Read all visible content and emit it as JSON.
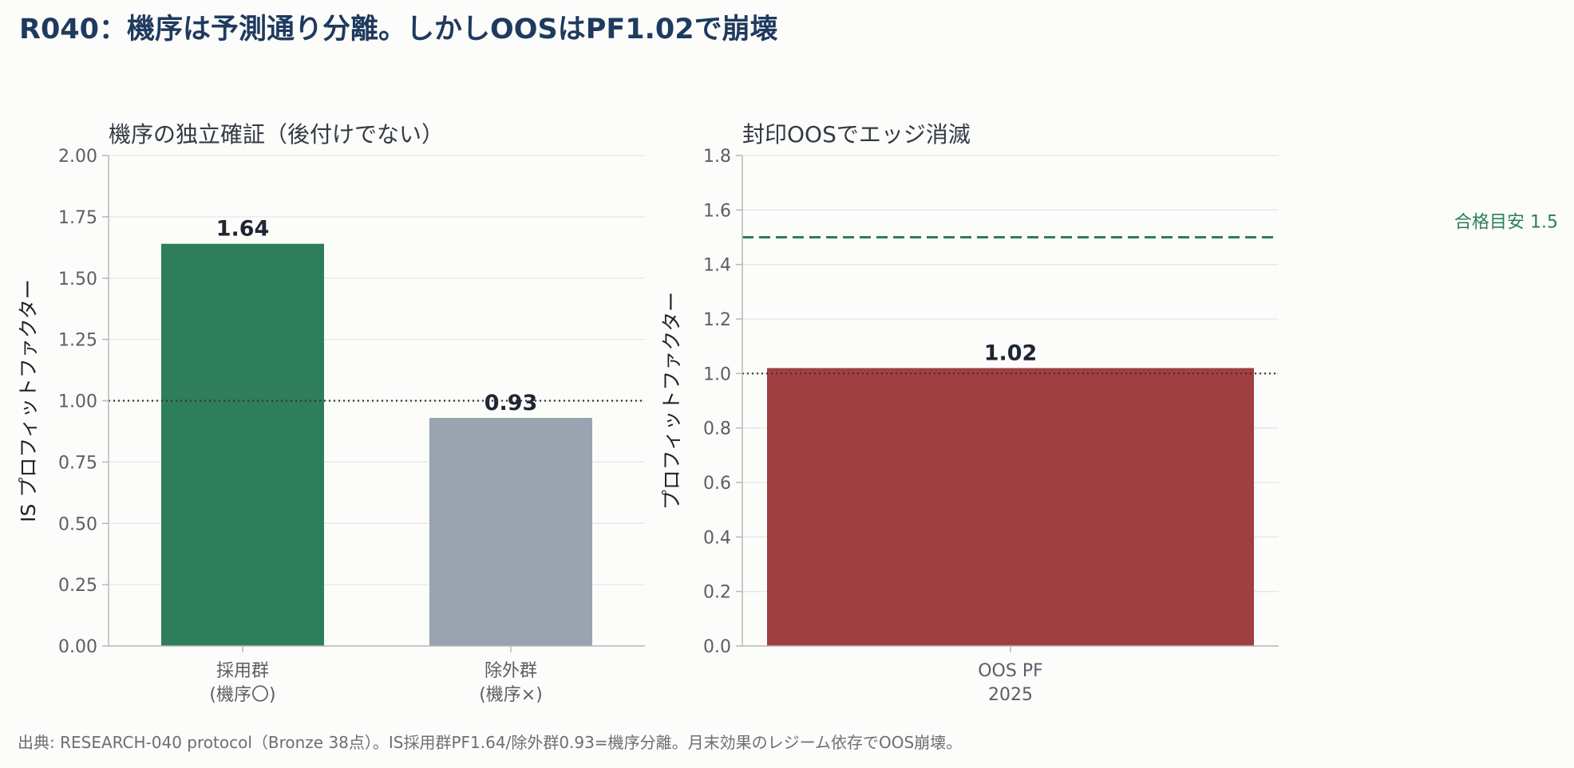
{
  "title": "R040：機序は予測通り分離。しかしOOSはPF1.02で崩壊",
  "footnote": "出典: RESEARCH-040 protocol（Bronze 38点）。IS採用群PF1.64/除外群0.93=機序分離。月末効果のレジーム依存でOOS崩壊。",
  "chart_data": [
    {
      "type": "bar",
      "title": "機序の独立確証（後付けでない）",
      "ylabel": "IS プロフィットファクター",
      "categories": [
        [
          "採用群",
          "(機序〇)"
        ],
        [
          "除外群",
          "(機序×)"
        ]
      ],
      "values": [
        1.64,
        0.93
      ],
      "value_labels": [
        "1.64",
        "0.93"
      ],
      "colors": [
        "#2e7d5b",
        "#9aa3b0"
      ],
      "ylim": [
        0,
        2.0
      ],
      "yticks": [
        "0.00",
        "0.25",
        "0.50",
        "0.75",
        "1.00",
        "1.25",
        "1.50",
        "1.75",
        "2.00"
      ],
      "reference_lines": [
        {
          "y": 1.0,
          "style": "dotted",
          "color": "#333333",
          "label": ""
        }
      ],
      "grid": true
    },
    {
      "type": "bar",
      "title": "封印OOSでエッジ消滅",
      "ylabel": "プロフィットファクター",
      "categories": [
        [
          "OOS PF",
          "2025"
        ]
      ],
      "values": [
        1.02
      ],
      "value_labels": [
        "1.02"
      ],
      "colors": [
        "#a03f41"
      ],
      "ylim": [
        0,
        1.8
      ],
      "yticks": [
        "0.0",
        "0.2",
        "0.4",
        "0.6",
        "0.8",
        "1.0",
        "1.2",
        "1.4",
        "1.6",
        "1.8"
      ],
      "reference_lines": [
        {
          "y": 1.5,
          "style": "dashed",
          "color": "#2e7d5b",
          "label": "合格目安 1.5"
        },
        {
          "y": 1.0,
          "style": "dotted",
          "color": "#333333",
          "label": ""
        }
      ],
      "grid": true
    }
  ]
}
